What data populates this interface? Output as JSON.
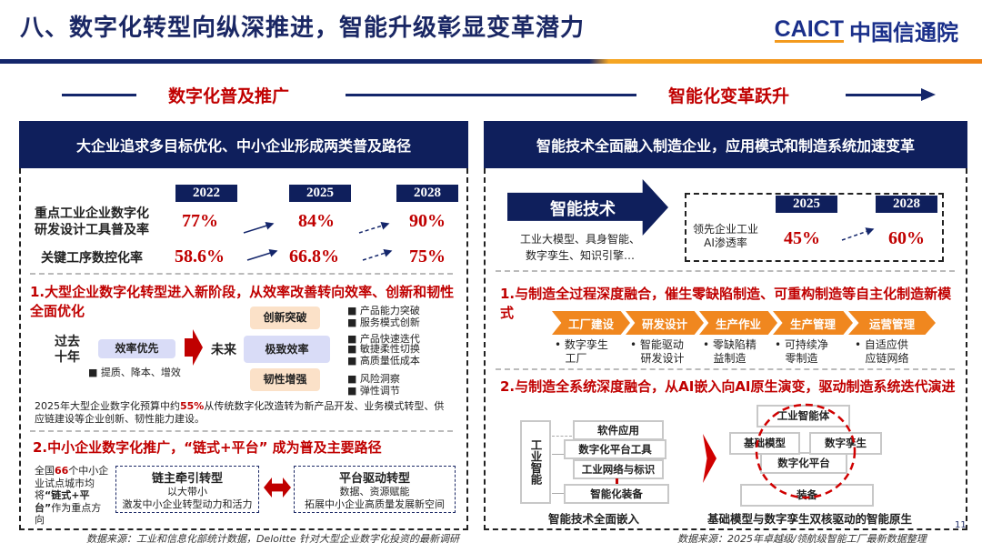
{
  "title": "八、数字化转型向纵深推进，智能升级彰显变革潜力",
  "logo": {
    "en": "CAICT",
    "cn": "中国信通院"
  },
  "phases": [
    "数字化普及推广",
    "智能化变革跃升"
  ],
  "left": {
    "header": "大企业追求多目标优化、中小企业形成两类普及路径",
    "years": [
      "2022",
      "2025",
      "2028"
    ],
    "rows": [
      {
        "label1": "重点工业企业数字化",
        "label2": "研发设计工具普及率",
        "values": [
          "77%",
          "84%",
          "90%"
        ]
      },
      {
        "label1": "关键工序数控化率",
        "values": [
          "58.6%",
          "66.8%",
          "75%"
        ]
      }
    ],
    "sec1": {
      "title": "1.大型企业数字化转型进入新阶段，从效率改善转向效率、创新和韧性全面优化",
      "past1": "过去",
      "past2": "十年",
      "past_box": "效率优先",
      "past_bullet": "■ 提质、降本、增效",
      "future": "未来",
      "boxes": [
        "创新突破",
        "极致效率",
        "韧性增强"
      ],
      "bullets": [
        "■ 产品能力突破",
        "■ 服务模式创新",
        "■ 产品快速迭代",
        "■ 敏捷柔性切换",
        "■ 高质量低成本",
        "■ 风险洞察",
        "■ 弹性调节"
      ],
      "note_a": "2025年大型企业数字化预算中约",
      "note_pct": "55%",
      "note_b": "从传统数字化改造转为新产品开发、业务模式转型、供应链建设等企业创新、韧性能力建设。"
    },
    "sec2": {
      "title": "2.中小企业数字化推广，“链式+平台” 成为普及主要路径",
      "side_a": "全国",
      "side_num": "66",
      "side_b": "个中小企业试点城市均将",
      "side_bold": "“链式+平台”",
      "side_c": "作为重点方向",
      "box1": {
        "title": "链主牵引转型",
        "l1": "以大带小",
        "l2": "激发中小企业转型动力和活力"
      },
      "box2": {
        "title": "平台驱动转型",
        "l1": "数据、资源赋能",
        "l2": "拓展中小企业高质量发展新空间"
      }
    },
    "source": "数据来源：工业和信息化部统计数据，Deloitte 针对大型企业数字化投资的最新调研"
  },
  "right": {
    "header": "智能技术全面融入制造企业，应用模式和制造系统加速变革",
    "tech": "智能技术",
    "tech_l1": "工业大模型、具身智能、",
    "tech_l2": "数字孪生、知识引擎…",
    "years": [
      "2025",
      "2028"
    ],
    "rate_label1": "领先企业工业",
    "rate_label2": "AI渗透率",
    "values": [
      "45%",
      "60%"
    ],
    "sec1": {
      "title": "1.与制造全过程深度融合，催生零缺陷制造、可重构制造等自主化制造新模式",
      "stages": [
        "工厂建设",
        "研发设计",
        "生产作业",
        "生产管理",
        "运营管理"
      ],
      "items": [
        [
          "数字孪生",
          "工厂"
        ],
        [
          "智能驱动",
          "研发设计"
        ],
        [
          "零缺陷精",
          "益制造"
        ],
        [
          "可持续净",
          "零制造"
        ],
        [
          "自适应供",
          "应链网络"
        ]
      ]
    },
    "sec2": {
      "title": "2.与制造全系统深度融合，从AI嵌入向AI原生演变，驱动制造系统迭代演进",
      "side": "工业智能",
      "layers": [
        "软件应用",
        "数字化平台工具",
        "工业网络与标识",
        "智能化装备"
      ],
      "cap1": "智能技术全面嵌入",
      "native": [
        "工业智能体",
        "基础模型",
        "数字孪生",
        "数字化平台",
        "装备"
      ],
      "cap2": "基础模型与数字孪生双核驱动的智能原生"
    },
    "source": "数据来源：2025年卓越级/领航级智能工厂最新数据整理"
  },
  "page": "11",
  "colors": {
    "navy": "#0f1f5c",
    "red": "#c00000",
    "orange": "#f0871f"
  }
}
